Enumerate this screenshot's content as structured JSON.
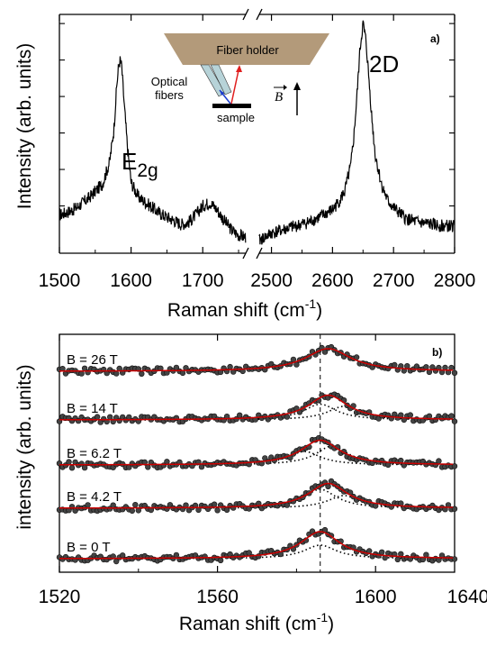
{
  "chart_data": [
    {
      "type": "line",
      "panel": "a)",
      "ylabel": "Intensity (arb. units)",
      "xlabel": "Raman shift (cm",
      "xlabel_sup": "-1",
      "xlabel_end": ")",
      "x_ticks_left": [
        "1500",
        "1600",
        "1700"
      ],
      "x_ticks_right": [
        "2500",
        "2600",
        "2700",
        "2800"
      ],
      "xlim_left": [
        1500,
        1760
      ],
      "xlim_right": [
        2480,
        2800
      ],
      "ylim": [
        0,
        1.25
      ],
      "broken_axis": true,
      "peaks": [
        {
          "label": "E",
          "label_sub": "2g",
          "center": 1585,
          "height": 1.0
        },
        {
          "label": "2D",
          "center": 2650,
          "height": 1.2
        }
      ],
      "series_left": {
        "x": [
          1500,
          1520,
          1540,
          1560,
          1570,
          1576,
          1580,
          1583,
          1585,
          1587,
          1590,
          1595,
          1600,
          1610,
          1620,
          1630,
          1640,
          1650,
          1660,
          1670,
          1680,
          1690,
          1700,
          1710,
          1720,
          1730,
          1740,
          1750,
          1760
        ],
        "y": [
          0.15,
          0.18,
          0.24,
          0.32,
          0.44,
          0.62,
          0.86,
          0.98,
          1.0,
          0.96,
          0.78,
          0.52,
          0.33,
          0.25,
          0.22,
          0.19,
          0.16,
          0.14,
          0.12,
          0.1,
          0.11,
          0.15,
          0.2,
          0.22,
          0.18,
          0.12,
          0.07,
          0.04,
          0.03
        ]
      },
      "series_right": {
        "x": [
          2480,
          2500,
          2520,
          2540,
          2560,
          2580,
          2600,
          2610,
          2620,
          2630,
          2635,
          2640,
          2645,
          2650,
          2655,
          2660,
          2665,
          2670,
          2680,
          2690,
          2700,
          2720,
          2740,
          2760,
          2780,
          2800
        ],
        "y": [
          0.01,
          0.05,
          0.07,
          0.09,
          0.11,
          0.14,
          0.18,
          0.22,
          0.28,
          0.42,
          0.58,
          0.8,
          1.06,
          1.2,
          1.1,
          0.88,
          0.66,
          0.48,
          0.32,
          0.23,
          0.19,
          0.13,
          0.11,
          0.1,
          0.09,
          0.09
        ]
      },
      "inset": {
        "holder": "Fiber holder",
        "fibers": [
          "Optical",
          "fibers"
        ],
        "sample": "sample",
        "field": "B"
      }
    },
    {
      "type": "scatter",
      "panel": "b)",
      "ylabel": "intensity (arb. units)",
      "xlabel": "Raman shift (cm",
      "xlabel_sup": "-1",
      "xlabel_end": ")",
      "x_ticks": [
        "1520",
        "1560",
        "1600",
        "1640"
      ],
      "xlim": [
        1520,
        1620
      ],
      "dashed_line_x": 1586,
      "colors": {
        "fit": "#cc0000",
        "data": "#222222",
        "component": "#000000"
      },
      "traces": [
        {
          "label": "B = 26 T",
          "center": 1588,
          "width": 7,
          "amp": 0.5,
          "components": []
        },
        {
          "label": "B = 14 T",
          "center": 1588,
          "width": 6,
          "amp": 0.55,
          "components": [
            {
              "center": 1586,
              "amp": 0.35
            },
            {
              "center": 1592,
              "amp": 0.3
            }
          ]
        },
        {
          "label": "B = 6.2 T",
          "center": 1586,
          "width": 6,
          "amp": 0.55,
          "components": [
            {
              "center": 1582,
              "amp": 0.3
            },
            {
              "center": 1589,
              "amp": 0.42
            }
          ]
        },
        {
          "label": "B = 4.2 T",
          "center": 1588,
          "width": 6,
          "amp": 0.55,
          "components": [
            {
              "center": 1586,
              "amp": 0.42
            },
            {
              "center": 1592,
              "amp": 0.28
            }
          ]
        },
        {
          "label": "B = 0 T",
          "center": 1586,
          "width": 6,
          "amp": 0.6,
          "components": [
            {
              "center": 1586,
              "amp": 0.3
            }
          ]
        }
      ]
    }
  ]
}
